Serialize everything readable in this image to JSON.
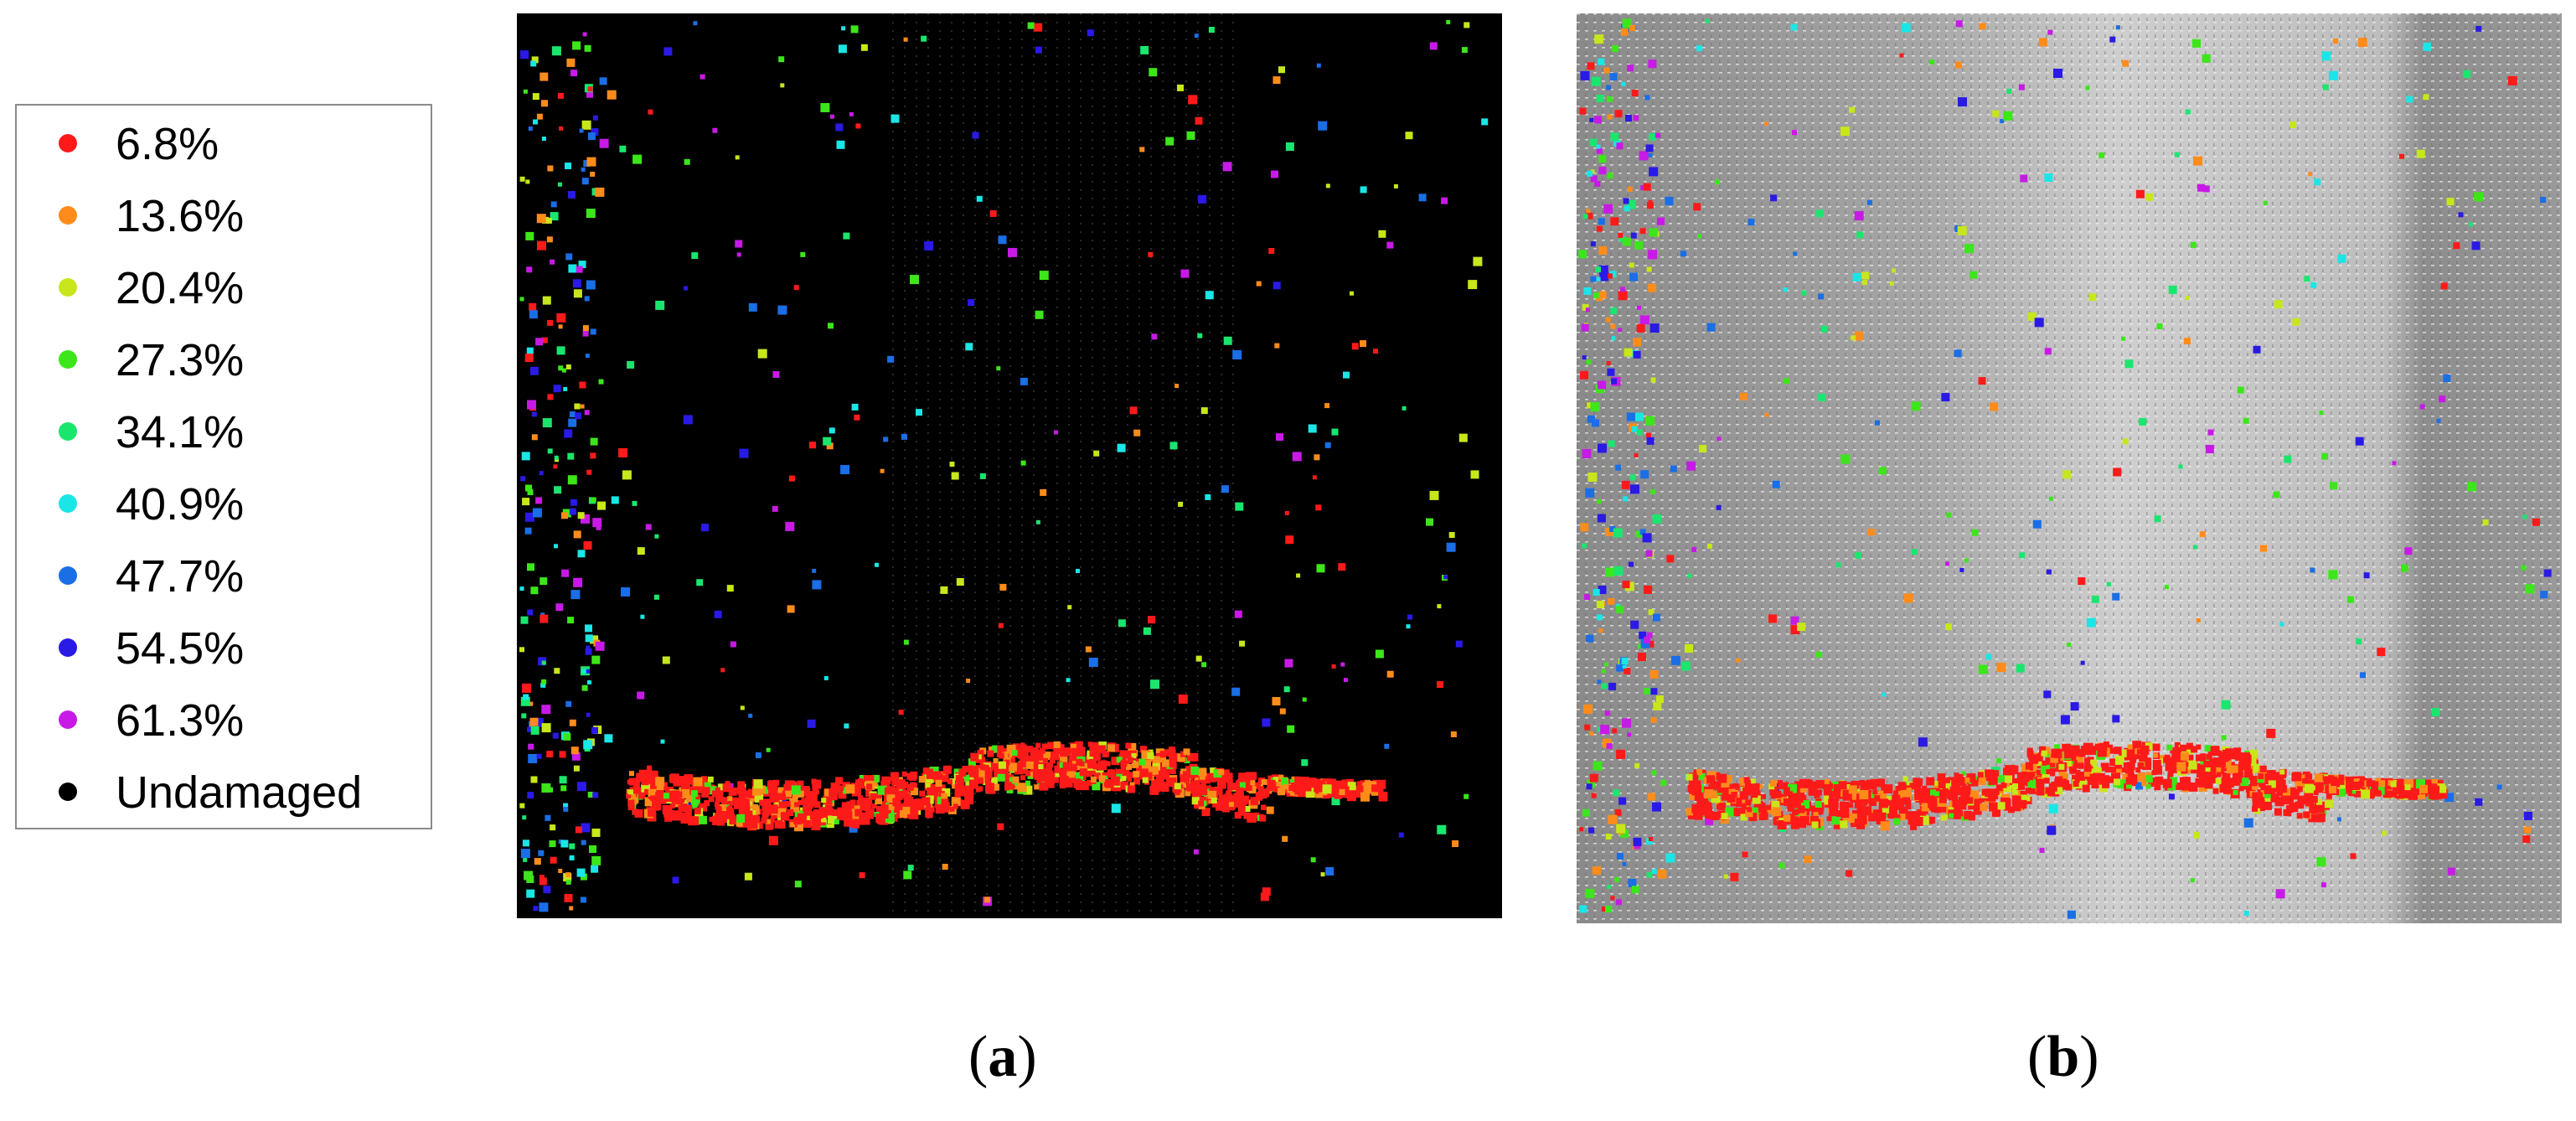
{
  "legend": {
    "items": [
      {
        "label": "6.8%",
        "color": "#ff1a1a"
      },
      {
        "label": "13.6%",
        "color": "#ff8c1a"
      },
      {
        "label": "20.4%",
        "color": "#c8e61a"
      },
      {
        "label": "27.3%",
        "color": "#3ce61a"
      },
      {
        "label": "34.1%",
        "color": "#1ae66e"
      },
      {
        "label": "40.9%",
        "color": "#1ae6e6"
      },
      {
        "label": "47.7%",
        "color": "#1a6ee6"
      },
      {
        "label": "54.5%",
        "color": "#2a1ae6"
      },
      {
        "label": "61.3%",
        "color": "#c81ae6"
      },
      {
        "label": "Undamaged",
        "color": "#000000"
      }
    ]
  },
  "panels": {
    "a": {
      "caption_open": "(",
      "caption_letter": "a",
      "caption_close": ")"
    },
    "b": {
      "caption_open": "(",
      "caption_letter": "b",
      "caption_close": ")"
    }
  }
}
